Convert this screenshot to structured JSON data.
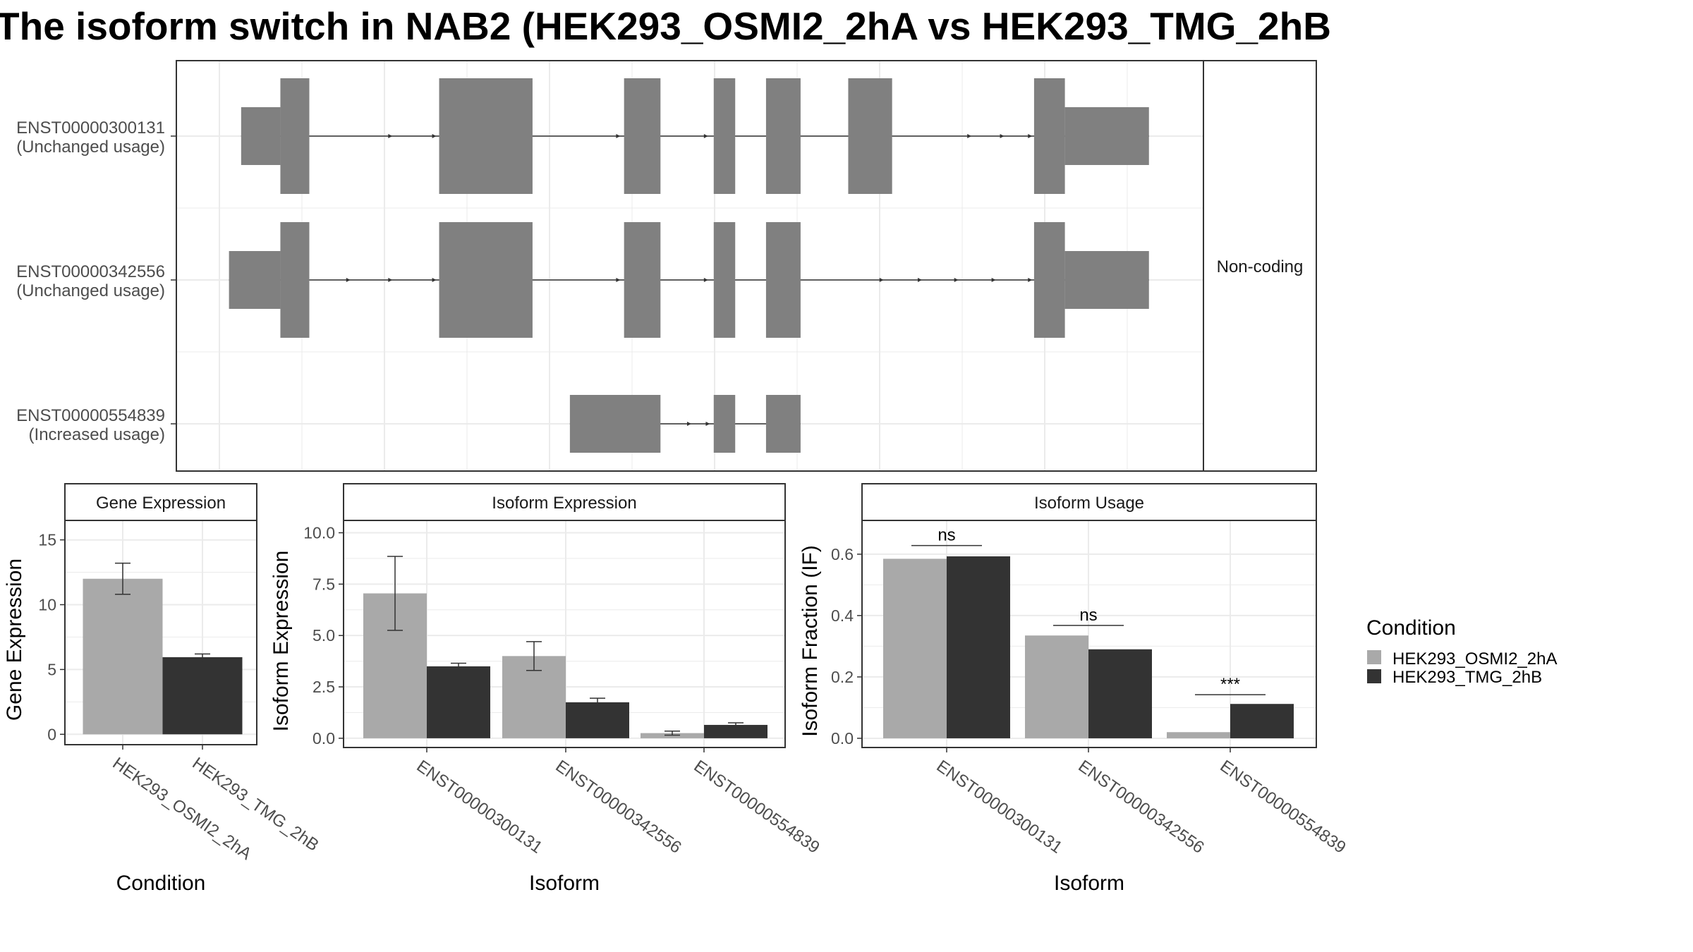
{
  "title": "The isoform switch in NAB2 (HEK293_OSMI2_2hA vs HEK293_TMG_2hB",
  "colors": {
    "cond_a": "#a9a9a9",
    "cond_b": "#333333",
    "exon": "#808080",
    "strip": "#ffffff",
    "grid": "#ebebeb"
  },
  "structure": {
    "strip_label": "Non-coding",
    "genomic_range": [
      0,
      1000
    ],
    "transcripts": [
      {
        "id": "ENST00000300131",
        "usage": "(Unchanged usage)",
        "exons": [
          {
            "start": 18,
            "end": 60,
            "type": "utr"
          },
          {
            "start": 60,
            "end": 91,
            "type": "cds"
          },
          {
            "start": 230,
            "end": 330,
            "type": "cds"
          },
          {
            "start": 428,
            "end": 467,
            "type": "cds"
          },
          {
            "start": 524,
            "end": 547,
            "type": "cds"
          },
          {
            "start": 580,
            "end": 617,
            "type": "cds"
          },
          {
            "start": 668,
            "end": 715,
            "type": "cds"
          },
          {
            "start": 867,
            "end": 900,
            "type": "cds"
          },
          {
            "start": 900,
            "end": 990,
            "type": "utr"
          }
        ],
        "arrows": [
          180,
          227,
          424,
          518,
          545,
          800,
          835,
          865
        ]
      },
      {
        "id": "ENST00000342556",
        "usage": "(Unchanged usage)",
        "exons": [
          {
            "start": 5,
            "end": 60,
            "type": "utr"
          },
          {
            "start": 60,
            "end": 91,
            "type": "cds"
          },
          {
            "start": 230,
            "end": 330,
            "type": "cds"
          },
          {
            "start": 428,
            "end": 467,
            "type": "cds"
          },
          {
            "start": 524,
            "end": 547,
            "type": "cds"
          },
          {
            "start": 580,
            "end": 617,
            "type": "cds"
          },
          {
            "start": 867,
            "end": 900,
            "type": "cds"
          },
          {
            "start": 900,
            "end": 990,
            "type": "utr"
          }
        ],
        "arrows": [
          135,
          180,
          227,
          424,
          518,
          545,
          706,
          747,
          786,
          826,
          865
        ]
      },
      {
        "id": "ENST00000554839",
        "usage": "(Increased usage)",
        "exons": [
          {
            "start": 370,
            "end": 467,
            "type": "utr"
          },
          {
            "start": 524,
            "end": 547,
            "type": "utr"
          },
          {
            "start": 580,
            "end": 617,
            "type": "utr"
          }
        ],
        "arrows": [
          500,
          520
        ]
      }
    ]
  },
  "chart_data": [
    {
      "type": "bar",
      "panel": "Gene Expression",
      "categories": [
        "HEK293_OSMI2_2hA",
        "HEK293_TMG_2hB"
      ],
      "values": [
        12.0,
        5.95
      ],
      "error_low": [
        10.8,
        5.7
      ],
      "error_high": [
        13.2,
        6.2
      ],
      "xlabel": "Condition",
      "ylabel": "Gene Expression",
      "ylim": [
        -0.8,
        16.5
      ],
      "yticks": [
        0,
        5,
        10,
        15
      ],
      "ytick_labels": [
        "0",
        "5",
        "10",
        "15"
      ]
    },
    {
      "type": "bar",
      "panel": "Isoform Expression",
      "categories": [
        "ENST00000300131",
        "ENST00000342556",
        "ENST00000554839"
      ],
      "series": [
        {
          "name": "HEK293_OSMI2_2hA",
          "values": [
            7.05,
            4.0,
            0.25
          ],
          "error_low": [
            5.25,
            3.3,
            0.15
          ],
          "error_high": [
            8.85,
            4.7,
            0.35
          ]
        },
        {
          "name": "HEK293_TMG_2hB",
          "values": [
            3.5,
            1.75,
            0.65
          ],
          "error_low": [
            3.35,
            1.55,
            0.55
          ],
          "error_high": [
            3.65,
            1.95,
            0.75
          ]
        }
      ],
      "xlabel": "Isoform",
      "ylabel": "Isoform Expression",
      "ylim": [
        -0.45,
        10.6
      ],
      "yticks": [
        0,
        2.5,
        5,
        7.5,
        10
      ],
      "ytick_labels": [
        "0.0",
        "2.5",
        "5.0",
        "7.5",
        "10.0"
      ]
    },
    {
      "type": "bar",
      "panel": "Isoform Usage",
      "categories": [
        "ENST00000300131",
        "ENST00000342556",
        "ENST00000554839"
      ],
      "series": [
        {
          "name": "HEK293_OSMI2_2hA",
          "values": [
            0.585,
            0.335,
            0.02
          ]
        },
        {
          "name": "HEK293_TMG_2hB",
          "values": [
            0.593,
            0.29,
            0.112
          ]
        }
      ],
      "significance": [
        "ns",
        "ns",
        "***"
      ],
      "significance_y": [
        0.628,
        0.368,
        0.142
      ],
      "xlabel": "Isoform",
      "ylabel": "Isoform Fraction (IF)",
      "ylim": [
        -0.03,
        0.71
      ],
      "yticks": [
        0,
        0.2,
        0.4,
        0.6
      ],
      "ytick_labels": [
        "0.0",
        "0.2",
        "0.4",
        "0.6"
      ]
    }
  ],
  "legend": {
    "title": "Condition",
    "items": [
      "HEK293_OSMI2_2hA",
      "HEK293_TMG_2hB"
    ]
  }
}
